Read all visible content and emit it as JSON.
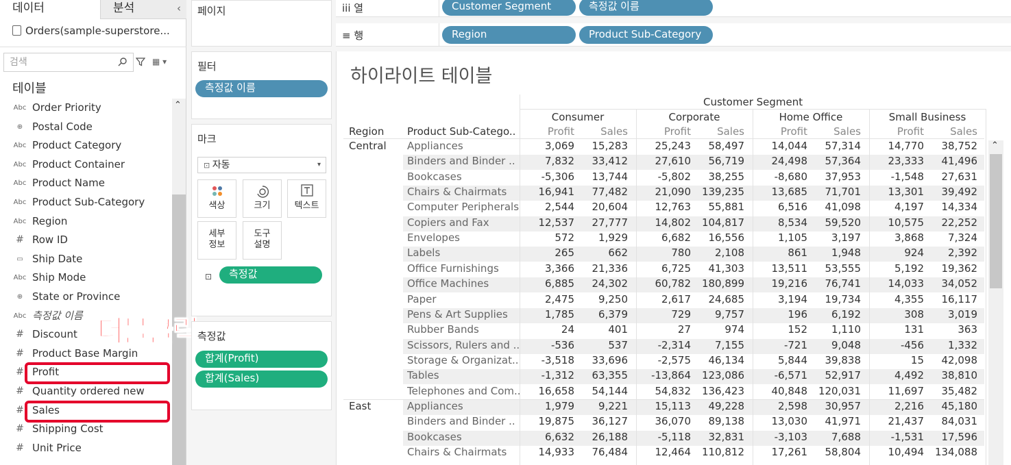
{
  "data_pane": {
    "tab_data": "데이터",
    "tab_analysis": "분석",
    "collapse": "‹",
    "datasource": "Orders(sample-superstore...",
    "search_placeholder": "검색",
    "tables_header": "테이블",
    "fields": [
      {
        "type": "Abc",
        "name": "Order Priority"
      },
      {
        "type": "⊕",
        "name": "Postal Code"
      },
      {
        "type": "Abc",
        "name": "Product Category"
      },
      {
        "type": "Abc",
        "name": "Product Container"
      },
      {
        "type": "Abc",
        "name": "Product Name"
      },
      {
        "type": "Abc",
        "name": "Product Sub-Category"
      },
      {
        "type": "Abc",
        "name": "Region"
      },
      {
        "type": "#",
        "name": "Row ID"
      },
      {
        "type": "▭",
        "name": "Ship Date"
      },
      {
        "type": "Abc",
        "name": "Ship Mode"
      },
      {
        "type": "⊕",
        "name": "State or Province"
      },
      {
        "type": "Abc",
        "name": "측정값 이름"
      },
      {
        "type": "#",
        "name": "Discount"
      },
      {
        "type": "#",
        "name": "Product Base Margin"
      },
      {
        "type": "#",
        "name": "Profit"
      },
      {
        "type": "#",
        "name": "Quantity ordered new"
      },
      {
        "type": "#",
        "name": "Sales"
      },
      {
        "type": "#",
        "name": "Shipping Cost"
      },
      {
        "type": "#",
        "name": "Unit Price"
      }
    ],
    "annotation": "더블클릭"
  },
  "cards": {
    "pages_title": "페이지",
    "filters_title": "필터",
    "filter_pill": "측정값 이름",
    "marks_title": "마크",
    "marks_type": "자동",
    "mark_buttons": {
      "color": "색상",
      "size": "크기",
      "text": "텍스트",
      "detail_1": "세부",
      "detail_2": "정보",
      "tooltip_1": "도구",
      "tooltip_2": "설명"
    },
    "marks_pill": "측정값",
    "measures_title": "측정값",
    "measure_pills": [
      "합계(Profit)",
      "합계(Sales)"
    ]
  },
  "shelves": {
    "columns_label": "iii 열",
    "columns_pills": [
      "Customer Segment",
      "측정값 이름"
    ],
    "rows_label": "≡ 행",
    "rows_pills": [
      "Region",
      "Product Sub-Category"
    ]
  },
  "view": {
    "title": "하이라이트 테이블",
    "segment_header": "Customer Segment",
    "row_headers": [
      "Region",
      "Product Sub-Catego.."
    ],
    "segments": [
      "Consumer",
      "Corporate",
      "Home Office",
      "Small Business"
    ],
    "measures": [
      "Profit",
      "Sales"
    ],
    "rows": [
      {
        "region": "Central",
        "sub": "Appliances",
        "v": [
          "3,069",
          "15,283",
          "25,243",
          "58,497",
          "14,044",
          "57,314",
          "14,770",
          "38,752"
        ]
      },
      {
        "region": "",
        "sub": "Binders and Binder ..",
        "v": [
          "7,832",
          "33,412",
          "27,610",
          "56,719",
          "24,498",
          "57,364",
          "23,333",
          "41,496"
        ]
      },
      {
        "region": "",
        "sub": "Bookcases",
        "v": [
          "-5,306",
          "13,744",
          "-5,802",
          "38,255",
          "-8,680",
          "37,953",
          "-1,548",
          "27,631"
        ]
      },
      {
        "region": "",
        "sub": "Chairs & Chairmats",
        "v": [
          "16,941",
          "77,482",
          "21,090",
          "139,235",
          "13,685",
          "71,701",
          "13,301",
          "39,492"
        ]
      },
      {
        "region": "",
        "sub": "Computer Peripherals",
        "v": [
          "2,544",
          "20,604",
          "12,763",
          "55,881",
          "6,516",
          "41,098",
          "4,197",
          "14,334"
        ]
      },
      {
        "region": "",
        "sub": "Copiers and Fax",
        "v": [
          "12,537",
          "27,777",
          "14,802",
          "104,817",
          "8,534",
          "59,520",
          "10,575",
          "22,252"
        ]
      },
      {
        "region": "",
        "sub": "Envelopes",
        "v": [
          "572",
          "1,929",
          "6,682",
          "16,556",
          "1,105",
          "3,197",
          "3,868",
          "7,324"
        ]
      },
      {
        "region": "",
        "sub": "Labels",
        "v": [
          "265",
          "662",
          "780",
          "2,108",
          "861",
          "1,948",
          "924",
          "2,392"
        ]
      },
      {
        "region": "",
        "sub": "Office Furnishings",
        "v": [
          "3,366",
          "21,336",
          "6,725",
          "41,303",
          "13,511",
          "53,555",
          "5,192",
          "19,362"
        ]
      },
      {
        "region": "",
        "sub": "Office Machines",
        "v": [
          "6,885",
          "24,302",
          "60,782",
          "180,899",
          "19,216",
          "76,741",
          "14,033",
          "34,052"
        ]
      },
      {
        "region": "",
        "sub": "Paper",
        "v": [
          "2,475",
          "9,250",
          "2,617",
          "24,685",
          "3,194",
          "19,734",
          "4,355",
          "16,117"
        ]
      },
      {
        "region": "",
        "sub": "Pens & Art Supplies",
        "v": [
          "1,785",
          "6,379",
          "729",
          "9,757",
          "196",
          "6,192",
          "308",
          "3,019"
        ]
      },
      {
        "region": "",
        "sub": "Rubber Bands",
        "v": [
          "24",
          "401",
          "27",
          "974",
          "152",
          "1,110",
          "131",
          "363"
        ]
      },
      {
        "region": "",
        "sub": "Scissors, Rulers and ..",
        "v": [
          "-536",
          "537",
          "-2,314",
          "7,155",
          "-721",
          "9,048",
          "-456",
          "1,332"
        ]
      },
      {
        "region": "",
        "sub": "Storage & Organizat..",
        "v": [
          "-3,518",
          "33,696",
          "-2,575",
          "46,134",
          "5,844",
          "39,838",
          "15",
          "42,098"
        ]
      },
      {
        "region": "",
        "sub": "Tables",
        "v": [
          "-1,312",
          "63,355",
          "-13,864",
          "123,086",
          "-6,571",
          "52,917",
          "4,492",
          "38,810"
        ]
      },
      {
        "region": "",
        "sub": "Telephones and Com..",
        "v": [
          "16,658",
          "54,144",
          "54,832",
          "136,423",
          "40,848",
          "120,031",
          "11,697",
          "35,482"
        ]
      },
      {
        "region": "East",
        "sub": "Appliances",
        "v": [
          "1,979",
          "9,221",
          "15,113",
          "49,228",
          "2,598",
          "30,957",
          "2,216",
          "45,180"
        ]
      },
      {
        "region": "",
        "sub": "Binders and Binder ..",
        "v": [
          "19,875",
          "36,127",
          "36,070",
          "89,138",
          "13,030",
          "41,971",
          "21,437",
          "84,031"
        ]
      },
      {
        "region": "",
        "sub": "Bookcases",
        "v": [
          "6,632",
          "26,188",
          "-5,118",
          "32,831",
          "-3,103",
          "7,688",
          "-1,531",
          "17,596"
        ]
      },
      {
        "region": "",
        "sub": "Chairs & Chairmats",
        "v": [
          "14,933",
          "76,484",
          "12,464",
          "110,812",
          "17,261",
          "58,804",
          "10,494",
          "134,088"
        ]
      }
    ]
  }
}
